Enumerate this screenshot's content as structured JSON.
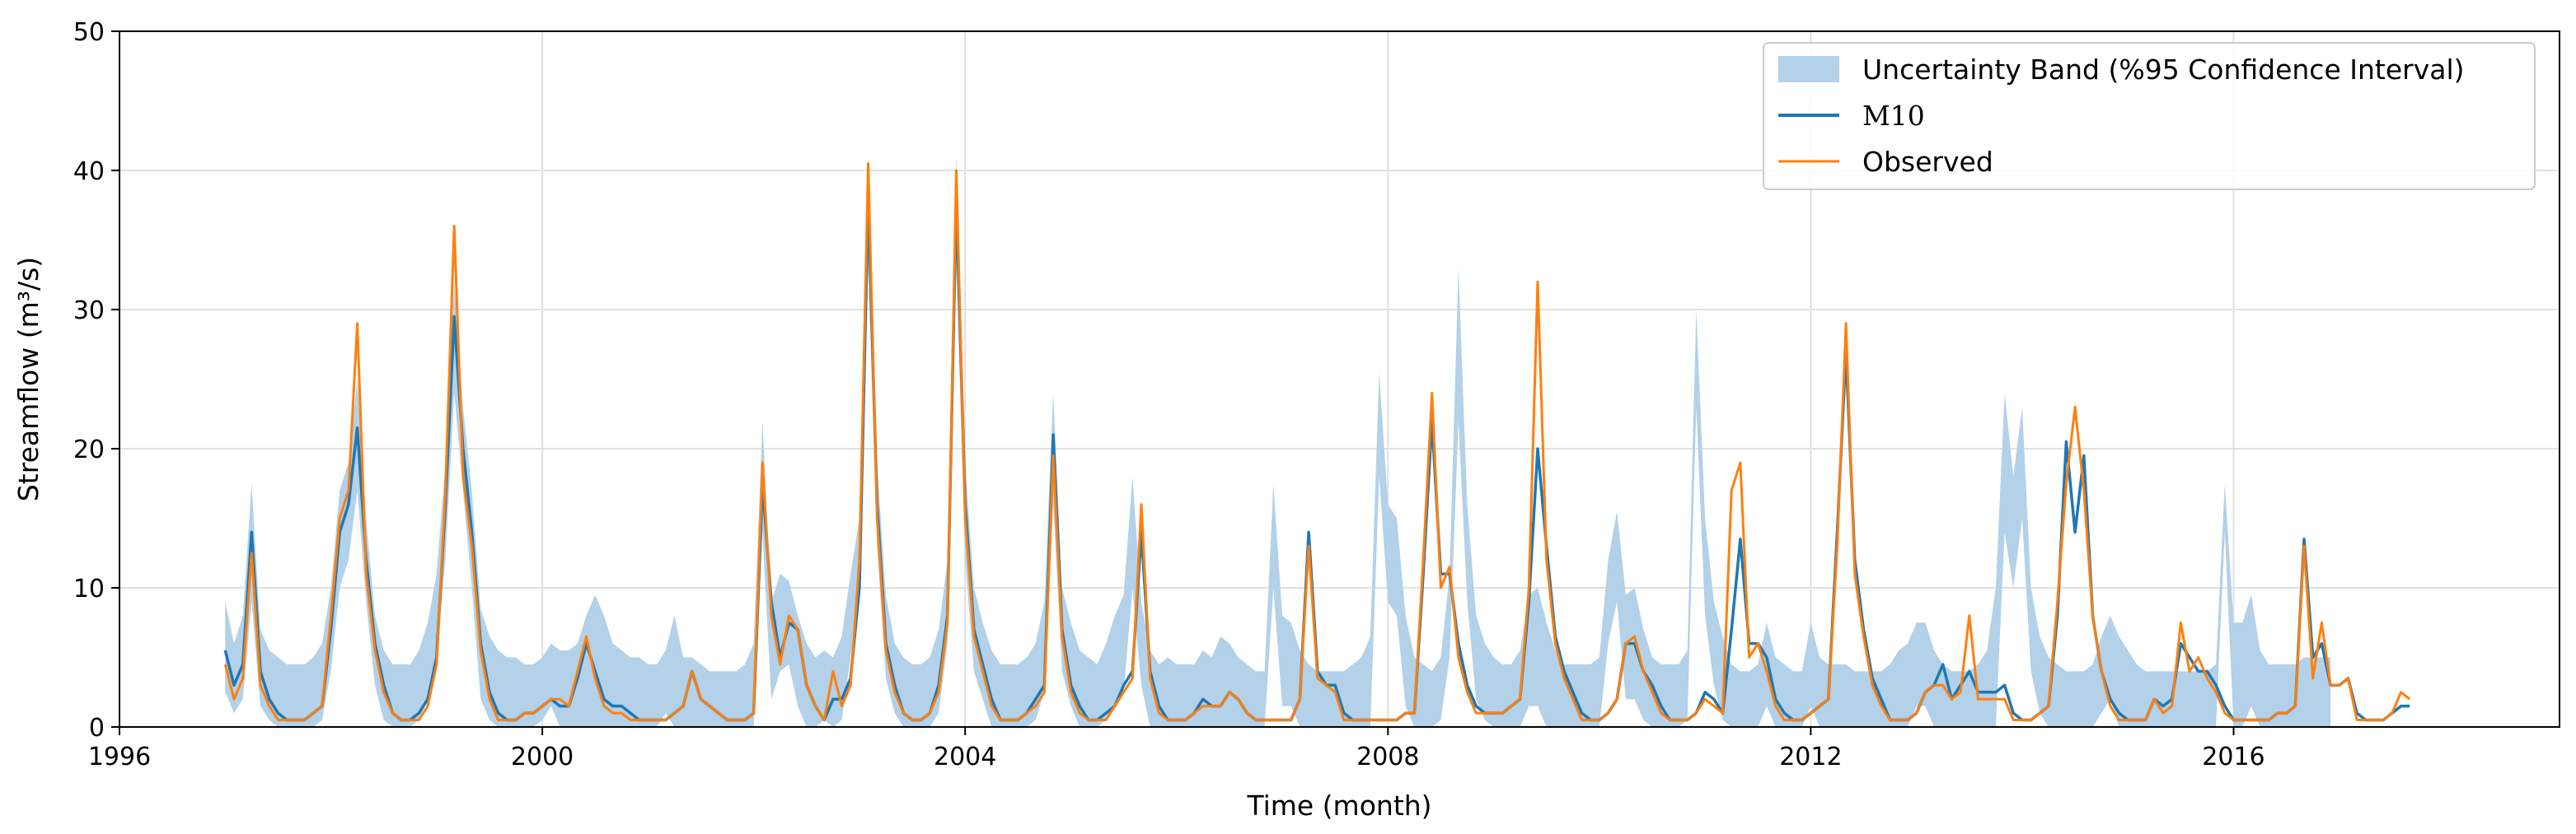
{
  "chart_data": {
    "type": "line",
    "title": "",
    "xlabel": "Time (month)",
    "ylabel": "Streamflow (m³/s)",
    "xlim": [
      "1996-01",
      "2019-02"
    ],
    "ylim": [
      0,
      50
    ],
    "x_ticks": [
      1996,
      2000,
      2004,
      2008,
      2012,
      2016
    ],
    "y_ticks": [
      0,
      10,
      20,
      30,
      40,
      50
    ],
    "grid": true,
    "legend_position": "top-right",
    "x_start": "1997-01",
    "x_step": "month",
    "colors": {
      "band": "#b3d1e8",
      "model": "#1f77b4",
      "observed": "#ff7f0e"
    },
    "series": [
      {
        "name": "Uncertainty Band (%95 Confidence Interval)",
        "kind": "band",
        "lower": [
          2.5,
          1.0,
          2.0,
          9.0,
          1.5,
          0.5,
          0,
          0,
          0,
          0,
          0,
          0.5,
          4.0,
          10.0,
          12.0,
          17.0,
          9.0,
          3.0,
          0.5,
          0,
          0,
          0,
          0.5,
          2.0,
          5.0,
          12.0,
          24.0,
          17.0,
          10.0,
          2.0,
          0.5,
          0,
          0,
          0,
          0,
          0,
          0.5,
          1.5,
          0,
          0,
          0,
          0,
          0,
          0,
          0,
          0,
          0,
          0,
          0,
          0,
          1.0,
          0,
          0,
          0,
          0,
          0,
          0,
          0,
          0,
          0,
          0,
          14.0,
          2.0,
          4.0,
          4.5,
          1.5,
          0,
          0,
          0.5,
          0,
          0.5,
          5.0,
          9.0,
          33.0,
          13.0,
          3.5,
          1.0,
          0,
          0,
          0,
          0,
          1.0,
          6.0,
          33.0,
          12.0,
          4.0,
          2.0,
          0,
          0,
          0,
          0,
          0,
          0.5,
          2.5,
          16.0,
          4.0,
          1.5,
          0,
          0,
          0,
          0.5,
          1.5,
          2.5,
          10.0,
          3.0,
          0,
          0,
          0,
          0,
          0,
          0,
          0,
          0,
          0,
          0,
          0,
          0,
          0,
          0,
          10.0,
          1.5,
          1.5,
          0,
          0,
          0,
          0,
          0,
          0,
          0,
          0,
          0,
          18.0,
          9.0,
          8.0,
          1.5,
          0,
          0,
          0,
          0.5,
          5.0,
          22.0,
          9.0,
          2.0,
          0.5,
          0,
          0,
          0,
          0,
          1.5,
          1.5,
          0,
          0,
          0,
          0,
          0,
          0,
          0,
          6.0,
          9.0,
          2.0,
          2.0,
          0.5,
          0,
          0,
          0,
          0,
          0.5,
          23.0,
          8.0,
          3.0,
          0.5,
          0,
          0,
          0,
          0,
          1.5,
          0,
          0,
          0,
          0,
          1.5,
          0,
          0,
          0,
          0,
          0,
          0,
          0,
          0,
          0,
          0,
          0,
          1.5,
          1.5,
          0,
          0,
          0,
          0,
          0,
          0,
          0,
          0,
          14.0,
          10.0,
          15.0,
          4.0,
          1.0,
          0,
          0,
          0,
          0,
          0,
          0,
          1.0,
          2.0,
          0,
          0,
          0,
          0,
          0,
          0,
          0,
          0,
          0,
          0,
          0,
          0,
          14.0,
          0,
          0,
          1.5,
          0,
          0,
          0,
          0,
          0,
          0,
          0,
          0,
          0
        ],
        "upper": [
          9.0,
          6.0,
          8.0,
          17.5,
          7.0,
          5.5,
          5.0,
          4.5,
          4.5,
          4.5,
          5.0,
          6.0,
          10.0,
          17.0,
          19.0,
          25.0,
          15.0,
          8.0,
          5.5,
          4.5,
          4.5,
          4.5,
          5.5,
          7.5,
          11.0,
          19.0,
          32.0,
          23.0,
          17.0,
          8.5,
          6.5,
          5.5,
          5.0,
          5.0,
          4.5,
          4.5,
          5.0,
          6.0,
          5.5,
          5.5,
          6.0,
          8.0,
          9.5,
          8.0,
          6.0,
          5.5,
          5.0,
          5.0,
          4.5,
          4.5,
          5.5,
          8.0,
          5.0,
          5.0,
          4.5,
          4.0,
          4.0,
          4.0,
          4.0,
          4.5,
          6.0,
          22.0,
          9.0,
          11.0,
          10.5,
          8.0,
          6.0,
          5.0,
          5.5,
          5.0,
          6.5,
          11.0,
          15.0,
          41.0,
          19.0,
          9.5,
          6.0,
          5.0,
          4.5,
          4.5,
          5.0,
          7.0,
          12.0,
          41.0,
          19.0,
          10.0,
          7.5,
          5.5,
          4.5,
          4.5,
          4.5,
          5.0,
          6.0,
          9.0,
          24.0,
          10.0,
          7.5,
          5.5,
          5.0,
          4.5,
          6.0,
          8.0,
          9.5,
          18.0,
          9.0,
          5.5,
          4.5,
          5.0,
          4.5,
          4.5,
          4.5,
          5.5,
          5.0,
          6.5,
          6.0,
          5.0,
          4.5,
          4.0,
          4.0,
          17.5,
          8.0,
          7.5,
          5.5,
          4.5,
          4.0,
          4.0,
          4.0,
          4.0,
          4.5,
          5.0,
          6.5,
          25.5,
          16.0,
          15.0,
          8.0,
          5.0,
          4.5,
          4.0,
          5.0,
          11.0,
          33.0,
          16.0,
          8.0,
          6.0,
          5.0,
          4.5,
          4.5,
          5.5,
          9.5,
          10.0,
          7.5,
          5.5,
          4.5,
          4.5,
          4.5,
          4.5,
          5.0,
          12.0,
          15.5,
          9.5,
          10.0,
          7.0,
          5.0,
          4.5,
          4.5,
          4.5,
          5.5,
          30.0,
          15.0,
          9.0,
          6.5,
          4.5,
          4.0,
          4.0,
          4.5,
          7.5,
          5.0,
          4.5,
          4.0,
          4.0,
          7.5,
          5.0,
          4.5,
          4.5,
          4.5,
          4.0,
          4.0,
          4.0,
          4.0,
          4.5,
          5.5,
          6.0,
          7.5,
          7.5,
          5.5,
          4.5,
          4.0,
          4.0,
          4.0,
          4.5,
          5.5,
          10.0,
          24.0,
          18.0,
          23.0,
          10.0,
          6.5,
          5.0,
          4.5,
          4.0,
          4.0,
          4.0,
          4.5,
          6.5,
          8.0,
          6.5,
          5.5,
          4.5,
          4.0,
          4.0,
          4.0,
          4.0,
          4.0,
          4.0,
          4.0,
          4.0,
          4.5,
          17.5,
          7.5,
          7.5,
          9.5,
          5.5,
          4.5,
          4.5,
          4.5,
          4.5,
          5.0,
          5.0,
          5.0,
          5.0
        ]
      },
      {
        "name": "M10",
        "kind": "line",
        "values": [
          5.5,
          3.0,
          4.5,
          14.0,
          4.0,
          2.0,
          1.0,
          0.5,
          0.5,
          0.5,
          1.0,
          1.5,
          7.0,
          14.0,
          16.0,
          21.5,
          12.0,
          6.0,
          3.0,
          1.0,
          0.5,
          0.5,
          1.0,
          2.0,
          5.0,
          16.0,
          29.5,
          20.0,
          14.0,
          6.0,
          2.5,
          1.0,
          0.5,
          0.5,
          1.0,
          1.0,
          1.5,
          2.0,
          1.5,
          1.5,
          3.5,
          6.0,
          4.0,
          2.0,
          1.5,
          1.5,
          1.0,
          0.5,
          0.5,
          0.5,
          0.5,
          1.0,
          1.5,
          4.0,
          2.0,
          1.5,
          1.0,
          0.5,
          0.5,
          0.5,
          1.0,
          17.5,
          9.0,
          5.0,
          7.5,
          7.0,
          3.0,
          1.5,
          0.5,
          2.0,
          2.0,
          3.5,
          10.0,
          38.0,
          16.0,
          6.0,
          3.0,
          1.0,
          0.5,
          0.5,
          1.0,
          3.0,
          8.0,
          38.0,
          16.0,
          7.0,
          4.5,
          2.0,
          0.5,
          0.5,
          0.5,
          1.0,
          2.0,
          3.0,
          21.0,
          7.0,
          3.0,
          1.5,
          0.5,
          0.5,
          1.0,
          1.5,
          3.0,
          4.0,
          14.0,
          4.0,
          1.5,
          0.5,
          0.5,
          0.5,
          1.0,
          2.0,
          1.5,
          1.5,
          2.5,
          2.0,
          1.0,
          0.5,
          0.5,
          0.5,
          0.5,
          0.5,
          2.0,
          14.0,
          4.0,
          3.0,
          3.0,
          1.0,
          0.5,
          0.5,
          0.5,
          0.5,
          0.5,
          0.5,
          1.0,
          1.0,
          11.0,
          22.0,
          11.0,
          11.0,
          6.0,
          3.0,
          1.5,
          1.0,
          1.0,
          1.0,
          1.5,
          2.0,
          9.0,
          20.0,
          13.0,
          6.5,
          4.0,
          2.5,
          1.0,
          0.5,
          0.5,
          1.0,
          2.0,
          6.0,
          6.0,
          4.0,
          3.0,
          1.5,
          0.5,
          0.5,
          0.5,
          1.0,
          2.5,
          2.0,
          1.0,
          7.0,
          13.5,
          6.0,
          6.0,
          5.0,
          2.0,
          1.0,
          0.5,
          0.5,
          1.0,
          1.5,
          2.0,
          14.0,
          27.0,
          12.0,
          7.0,
          3.5,
          2.0,
          0.5,
          0.5,
          0.5,
          1.0,
          2.5,
          3.0,
          4.5,
          2.0,
          3.0,
          4.0,
          2.5,
          2.5,
          2.5,
          3.0,
          1.0,
          0.5,
          0.5,
          1.0,
          1.5,
          8.0,
          20.5,
          14.0,
          19.5,
          8.0,
          4.0,
          2.0,
          1.0,
          0.5,
          0.5,
          0.5,
          2.0,
          1.5,
          2.0,
          6.0,
          5.0,
          4.0,
          4.0,
          3.0,
          1.5,
          0.5,
          0.5,
          0.5,
          0.5,
          0.5,
          1.0,
          1.0,
          1.5,
          13.5,
          5.0,
          6.0,
          3.0,
          3.0,
          3.5,
          1.0,
          0.5,
          0.5,
          0.5,
          1.0,
          1.5,
          1.5
        ]
      },
      {
        "name": "Observed",
        "kind": "line",
        "values": [
          4.5,
          2.0,
          3.5,
          12.5,
          3.0,
          1.5,
          0.5,
          0.5,
          0.5,
          0.5,
          1.0,
          1.5,
          8.0,
          15.0,
          17.0,
          29.0,
          11.0,
          5.5,
          2.5,
          1.0,
          0.5,
          0.5,
          0.5,
          1.5,
          4.5,
          17.0,
          36.0,
          18.0,
          13.0,
          5.5,
          2.0,
          0.5,
          0.5,
          0.5,
          1.0,
          1.0,
          1.5,
          2.0,
          2.0,
          1.5,
          4.0,
          6.5,
          3.5,
          1.5,
          1.0,
          1.0,
          0.5,
          0.5,
          0.5,
          0.5,
          0.5,
          1.0,
          1.5,
          4.0,
          2.0,
          1.5,
          1.0,
          0.5,
          0.5,
          0.5,
          1.0,
          19.0,
          8.0,
          4.5,
          8.0,
          7.0,
          3.0,
          1.5,
          0.5,
          4.0,
          1.5,
          3.0,
          12.0,
          40.5,
          15.0,
          5.5,
          2.5,
          1.0,
          0.5,
          0.5,
          1.0,
          2.5,
          7.5,
          40.0,
          15.0,
          6.5,
          4.0,
          1.5,
          0.5,
          0.5,
          0.5,
          1.0,
          1.5,
          2.5,
          19.5,
          6.5,
          2.5,
          1.0,
          0.5,
          0.5,
          0.5,
          1.5,
          2.5,
          3.5,
          16.0,
          3.5,
          1.0,
          0.5,
          0.5,
          0.5,
          1.0,
          1.5,
          1.5,
          1.5,
          2.5,
          2.0,
          1.0,
          0.5,
          0.5,
          0.5,
          0.5,
          0.5,
          2.0,
          13.0,
          3.5,
          3.0,
          2.5,
          0.5,
          0.5,
          0.5,
          0.5,
          0.5,
          0.5,
          0.5,
          1.0,
          1.0,
          12.0,
          24.0,
          10.0,
          11.5,
          5.0,
          2.5,
          1.0,
          1.0,
          1.0,
          1.0,
          1.5,
          2.0,
          10.0,
          32.0,
          12.0,
          6.0,
          3.5,
          2.0,
          0.5,
          0.5,
          0.5,
          1.0,
          2.0,
          6.0,
          6.5,
          4.0,
          2.5,
          1.0,
          0.5,
          0.5,
          0.5,
          1.0,
          2.0,
          1.5,
          1.0,
          17.0,
          19.0,
          5.0,
          6.0,
          4.0,
          1.5,
          0.5,
          0.5,
          0.5,
          1.0,
          1.5,
          2.0,
          13.0,
          29.0,
          11.0,
          6.5,
          3.0,
          1.5,
          0.5,
          0.5,
          0.5,
          1.0,
          2.5,
          3.0,
          3.0,
          2.0,
          2.5,
          8.0,
          2.0,
          2.0,
          2.0,
          2.0,
          0.5,
          0.5,
          0.5,
          1.0,
          1.5,
          9.0,
          17.5,
          23.0,
          17.0,
          8.0,
          4.0,
          1.5,
          0.5,
          0.5,
          0.5,
          0.5,
          2.0,
          1.0,
          1.5,
          7.5,
          4.0,
          5.0,
          3.5,
          2.5,
          1.0,
          0.5,
          0.5,
          0.5,
          0.5,
          0.5,
          1.0,
          1.0,
          1.5,
          13.0,
          3.5,
          7.5,
          3.0,
          3.0,
          3.5,
          0.5,
          0.5,
          0.5,
          0.5,
          1.0,
          2.5,
          2.0
        ]
      }
    ]
  }
}
